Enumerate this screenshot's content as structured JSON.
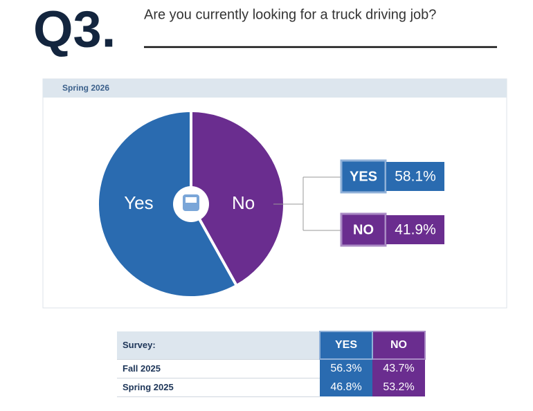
{
  "header": {
    "number": "Q3.",
    "question": "Are you currently looking for a truck driving job?"
  },
  "chart_data": {
    "type": "pie",
    "title": "Spring 2026",
    "categories": [
      "Yes",
      "No"
    ],
    "values": [
      58.1,
      41.9
    ],
    "value_labels": [
      "58.1%",
      "41.9%"
    ],
    "legend_labels": [
      "YES",
      "NO"
    ],
    "colors": [
      "#2a6bb0",
      "#6a2d8f"
    ]
  },
  "table": {
    "header": [
      "Survey:",
      "YES",
      "NO"
    ],
    "rows": [
      [
        "Fall 2025",
        "56.3%",
        "43.7%"
      ],
      [
        "Spring 2025",
        "46.8%",
        "53.2%"
      ]
    ]
  }
}
